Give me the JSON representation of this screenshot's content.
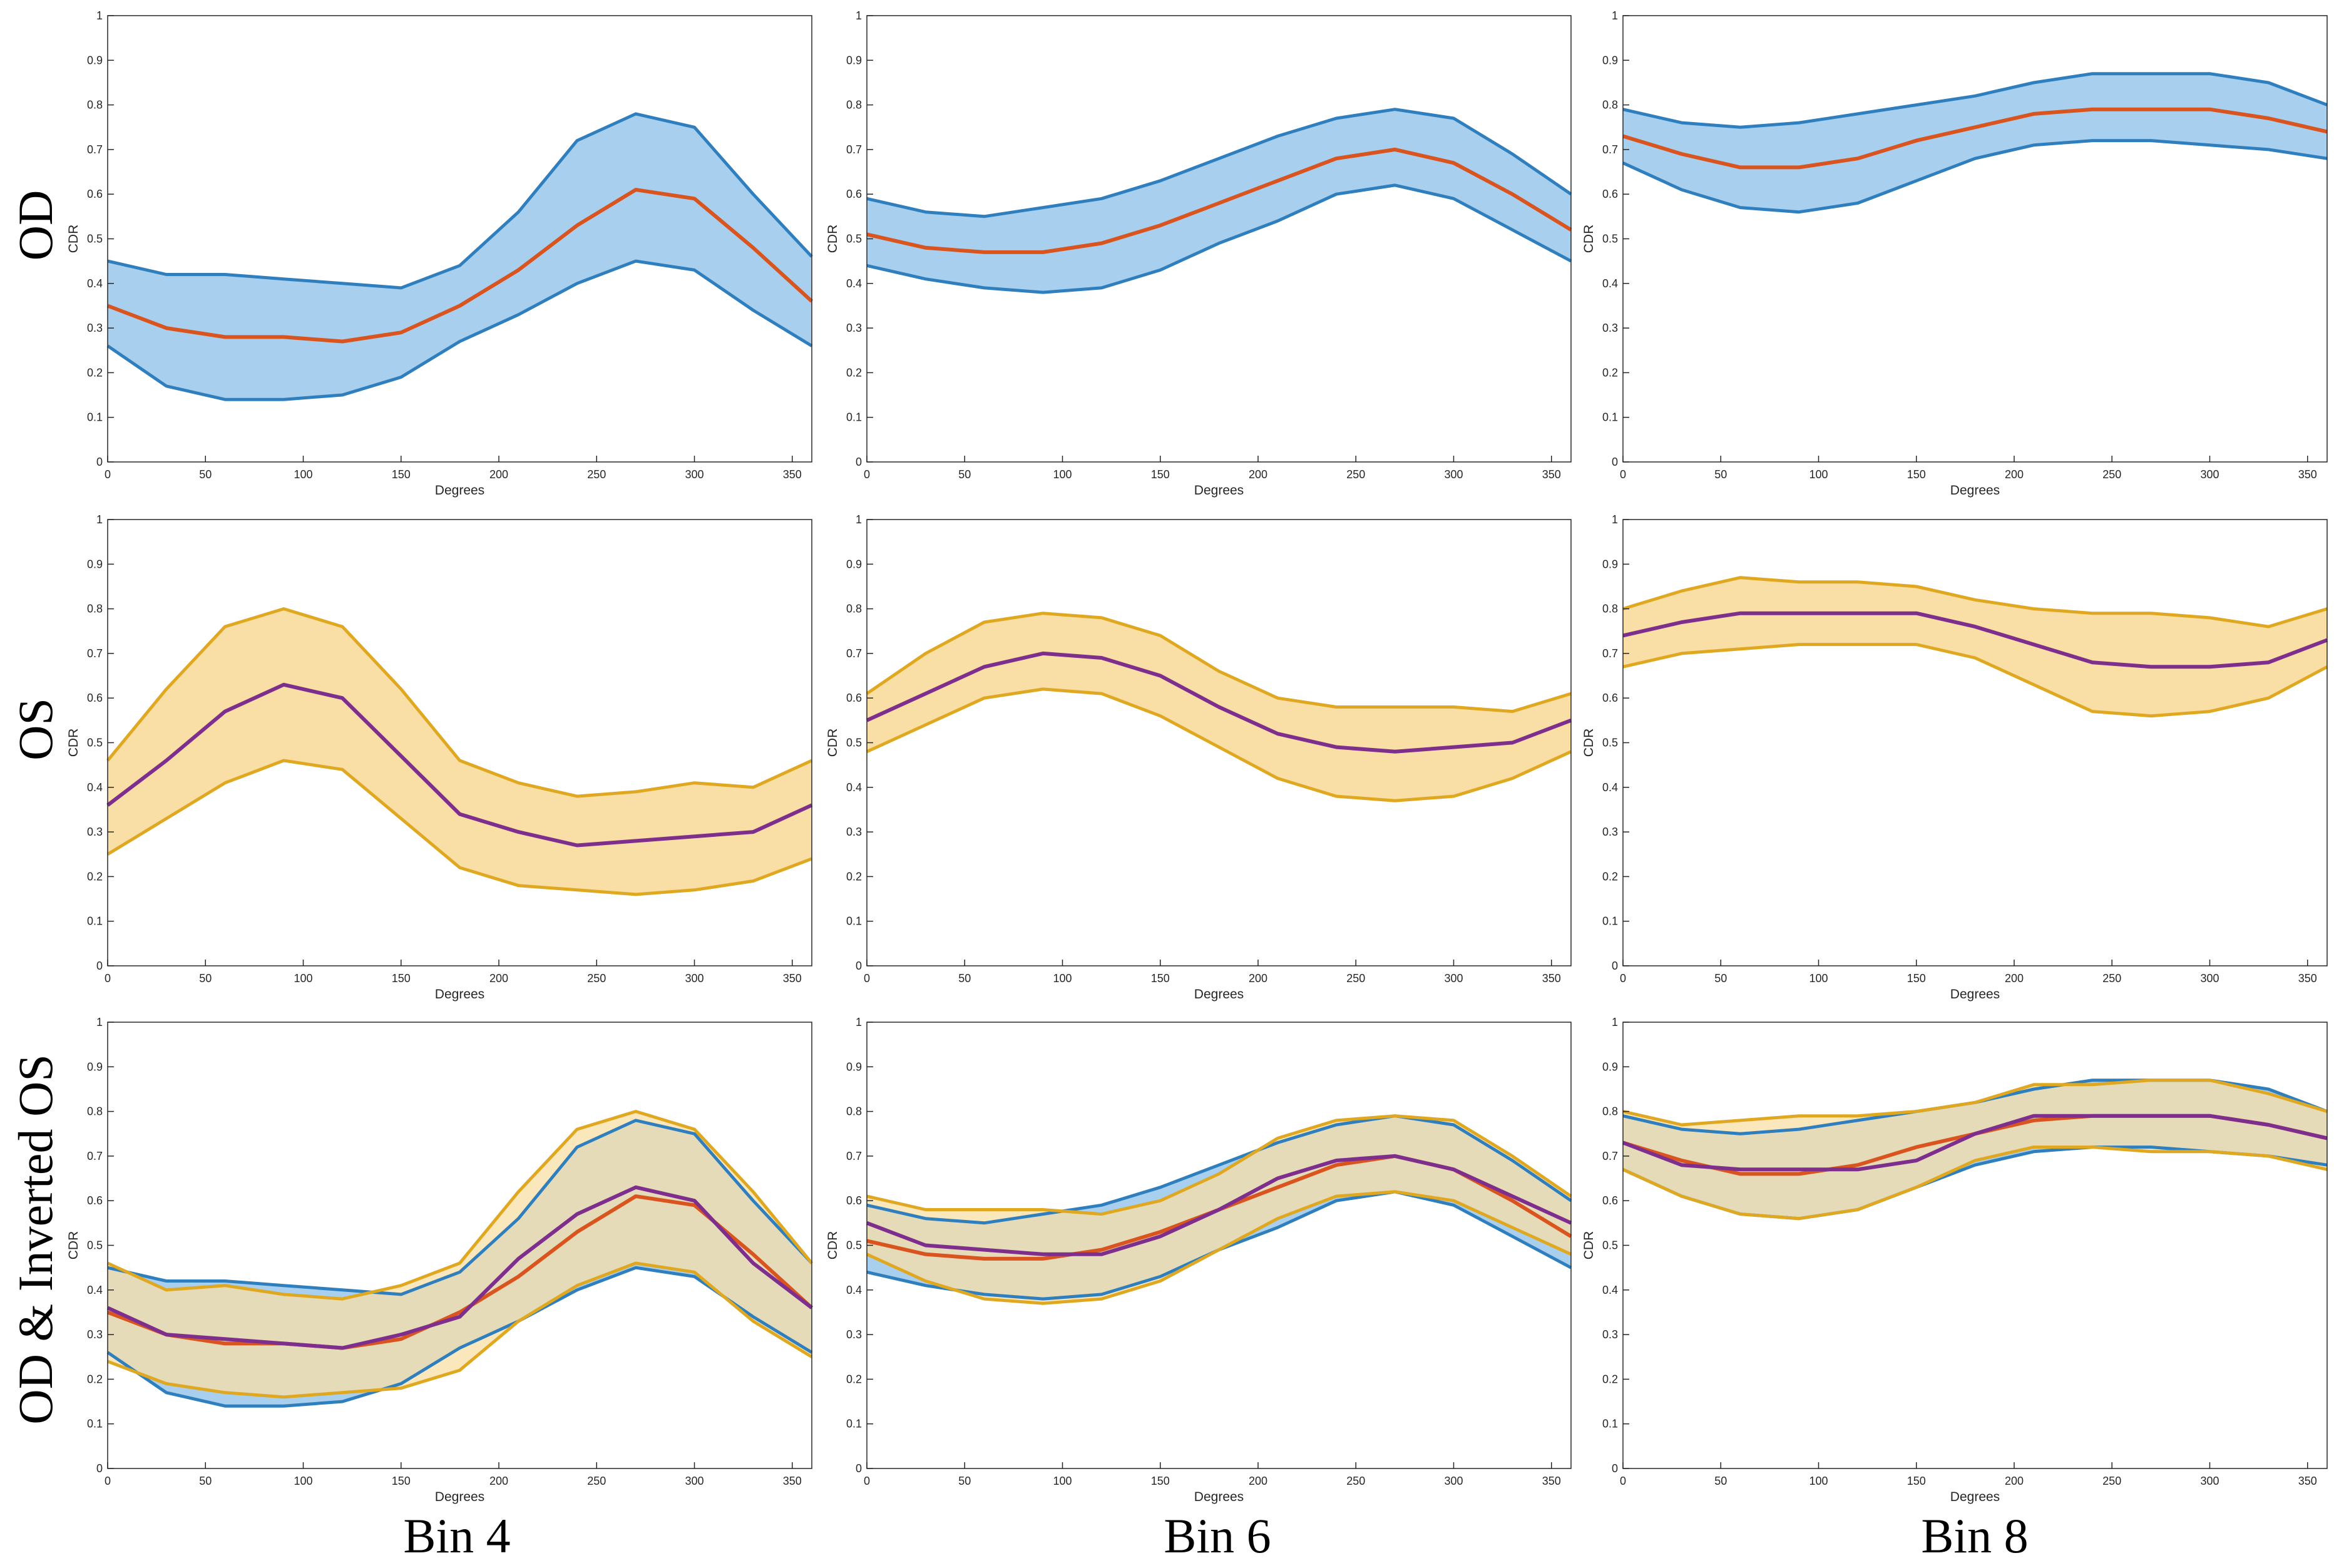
{
  "figure": {
    "row_labels": [
      "OD",
      "OS",
      "OD & Inverted OS"
    ],
    "col_labels": [
      "Bin 4",
      "Bin 6",
      "Bin 8"
    ],
    "colors": {
      "od_band": "#a8d0ee",
      "od_edge": "#2f7fbf",
      "od_mean": "#d9541e",
      "os_band": "#f9dfa6",
      "os_edge": "#e0a820",
      "os_mean": "#7e2f8e"
    }
  },
  "chart_data": [
    {
      "type": "line",
      "panel": "OD Bin 4",
      "title": "",
      "xlabel": "Degrees",
      "ylabel": "CDR",
      "xlim": [
        0,
        360
      ],
      "ylim": [
        0,
        1
      ],
      "grid": false,
      "x_ticks": [
        0,
        50,
        100,
        150,
        200,
        250,
        300,
        350
      ],
      "y_ticks": [
        0,
        0.1,
        0.2,
        0.3,
        0.4,
        0.5,
        0.6,
        0.7,
        0.8,
        0.9,
        1
      ],
      "x": [
        0,
        30,
        60,
        90,
        120,
        150,
        180,
        210,
        240,
        270,
        300,
        330,
        360
      ],
      "series": [
        {
          "name": "OD mean",
          "values": [
            0.35,
            0.3,
            0.28,
            0.28,
            0.27,
            0.29,
            0.35,
            0.43,
            0.53,
            0.61,
            0.59,
            0.48,
            0.36
          ]
        },
        {
          "name": "OD upper",
          "values": [
            0.45,
            0.42,
            0.42,
            0.41,
            0.4,
            0.39,
            0.44,
            0.56,
            0.72,
            0.78,
            0.75,
            0.6,
            0.46
          ]
        },
        {
          "name": "OD lower",
          "values": [
            0.26,
            0.17,
            0.14,
            0.14,
            0.15,
            0.19,
            0.27,
            0.33,
            0.4,
            0.45,
            0.43,
            0.34,
            0.26
          ]
        }
      ]
    },
    {
      "type": "line",
      "panel": "OD Bin 6",
      "title": "",
      "xlabel": "Degrees",
      "ylabel": "CDR",
      "xlim": [
        0,
        360
      ],
      "ylim": [
        0,
        1
      ],
      "grid": false,
      "x_ticks": [
        0,
        50,
        100,
        150,
        200,
        250,
        300,
        350
      ],
      "y_ticks": [
        0,
        0.1,
        0.2,
        0.3,
        0.4,
        0.5,
        0.6,
        0.7,
        0.8,
        0.9,
        1
      ],
      "x": [
        0,
        30,
        60,
        90,
        120,
        150,
        180,
        210,
        240,
        270,
        300,
        330,
        360
      ],
      "series": [
        {
          "name": "OD mean",
          "values": [
            0.51,
            0.48,
            0.47,
            0.47,
            0.49,
            0.53,
            0.58,
            0.63,
            0.68,
            0.7,
            0.67,
            0.6,
            0.52
          ]
        },
        {
          "name": "OD upper",
          "values": [
            0.59,
            0.56,
            0.55,
            0.57,
            0.59,
            0.63,
            0.68,
            0.73,
            0.77,
            0.79,
            0.77,
            0.69,
            0.6
          ]
        },
        {
          "name": "OD lower",
          "values": [
            0.44,
            0.41,
            0.39,
            0.38,
            0.39,
            0.43,
            0.49,
            0.54,
            0.6,
            0.62,
            0.59,
            0.52,
            0.45
          ]
        }
      ]
    },
    {
      "type": "line",
      "panel": "OD Bin 8",
      "title": "",
      "xlabel": "Degrees",
      "ylabel": "CDR",
      "xlim": [
        0,
        360
      ],
      "ylim": [
        0,
        1
      ],
      "grid": false,
      "x_ticks": [
        0,
        50,
        100,
        150,
        200,
        250,
        300,
        350
      ],
      "y_ticks": [
        0,
        0.1,
        0.2,
        0.3,
        0.4,
        0.5,
        0.6,
        0.7,
        0.8,
        0.9,
        1
      ],
      "x": [
        0,
        30,
        60,
        90,
        120,
        150,
        180,
        210,
        240,
        270,
        300,
        330,
        360
      ],
      "series": [
        {
          "name": "OD mean",
          "values": [
            0.73,
            0.69,
            0.66,
            0.66,
            0.68,
            0.72,
            0.75,
            0.78,
            0.79,
            0.79,
            0.79,
            0.77,
            0.74
          ]
        },
        {
          "name": "OD upper",
          "values": [
            0.79,
            0.76,
            0.75,
            0.76,
            0.78,
            0.8,
            0.82,
            0.85,
            0.87,
            0.87,
            0.87,
            0.85,
            0.8
          ]
        },
        {
          "name": "OD lower",
          "values": [
            0.67,
            0.61,
            0.57,
            0.56,
            0.58,
            0.63,
            0.68,
            0.71,
            0.72,
            0.72,
            0.71,
            0.7,
            0.68
          ]
        }
      ]
    },
    {
      "type": "line",
      "panel": "OS Bin 4",
      "title": "",
      "xlabel": "Degrees",
      "ylabel": "CDR",
      "xlim": [
        0,
        360
      ],
      "ylim": [
        0,
        1
      ],
      "grid": false,
      "x_ticks": [
        0,
        50,
        100,
        150,
        200,
        250,
        300,
        350
      ],
      "y_ticks": [
        0,
        0.1,
        0.2,
        0.3,
        0.4,
        0.5,
        0.6,
        0.7,
        0.8,
        0.9,
        1
      ],
      "x": [
        0,
        30,
        60,
        90,
        120,
        150,
        180,
        210,
        240,
        270,
        300,
        330,
        360
      ],
      "series": [
        {
          "name": "OS mean",
          "values": [
            0.36,
            0.46,
            0.57,
            0.63,
            0.6,
            0.47,
            0.34,
            0.3,
            0.27,
            0.28,
            0.29,
            0.3,
            0.36
          ]
        },
        {
          "name": "OS upper",
          "values": [
            0.46,
            0.62,
            0.76,
            0.8,
            0.76,
            0.62,
            0.46,
            0.41,
            0.38,
            0.39,
            0.41,
            0.4,
            0.46
          ]
        },
        {
          "name": "OS lower",
          "values": [
            0.25,
            0.33,
            0.41,
            0.46,
            0.44,
            0.33,
            0.22,
            0.18,
            0.17,
            0.16,
            0.17,
            0.19,
            0.24
          ]
        }
      ]
    },
    {
      "type": "line",
      "panel": "OS Bin 6",
      "title": "",
      "xlabel": "Degrees",
      "ylabel": "CDR",
      "xlim": [
        0,
        360
      ],
      "ylim": [
        0,
        1
      ],
      "grid": false,
      "x_ticks": [
        0,
        50,
        100,
        150,
        200,
        250,
        300,
        350
      ],
      "y_ticks": [
        0,
        0.1,
        0.2,
        0.3,
        0.4,
        0.5,
        0.6,
        0.7,
        0.8,
        0.9,
        1
      ],
      "x": [
        0,
        30,
        60,
        90,
        120,
        150,
        180,
        210,
        240,
        270,
        300,
        330,
        360
      ],
      "series": [
        {
          "name": "OS mean",
          "values": [
            0.55,
            0.61,
            0.67,
            0.7,
            0.69,
            0.65,
            0.58,
            0.52,
            0.49,
            0.48,
            0.49,
            0.5,
            0.55
          ]
        },
        {
          "name": "OS upper",
          "values": [
            0.61,
            0.7,
            0.77,
            0.79,
            0.78,
            0.74,
            0.66,
            0.6,
            0.58,
            0.58,
            0.58,
            0.57,
            0.61
          ]
        },
        {
          "name": "OS lower",
          "values": [
            0.48,
            0.54,
            0.6,
            0.62,
            0.61,
            0.56,
            0.49,
            0.42,
            0.38,
            0.37,
            0.38,
            0.42,
            0.48
          ]
        }
      ]
    },
    {
      "type": "line",
      "panel": "OS Bin 8",
      "title": "",
      "xlabel": "Degrees",
      "ylabel": "CDR",
      "xlim": [
        0,
        360
      ],
      "ylim": [
        0,
        1
      ],
      "grid": false,
      "x_ticks": [
        0,
        50,
        100,
        150,
        200,
        250,
        300,
        350
      ],
      "y_ticks": [
        0,
        0.1,
        0.2,
        0.3,
        0.4,
        0.5,
        0.6,
        0.7,
        0.8,
        0.9,
        1
      ],
      "x": [
        0,
        30,
        60,
        90,
        120,
        150,
        180,
        210,
        240,
        270,
        300,
        330,
        360
      ],
      "series": [
        {
          "name": "OS mean",
          "values": [
            0.74,
            0.77,
            0.79,
            0.79,
            0.79,
            0.79,
            0.76,
            0.72,
            0.68,
            0.67,
            0.67,
            0.68,
            0.73
          ]
        },
        {
          "name": "OS upper",
          "values": [
            0.8,
            0.84,
            0.87,
            0.86,
            0.86,
            0.85,
            0.82,
            0.8,
            0.79,
            0.79,
            0.78,
            0.76,
            0.8
          ]
        },
        {
          "name": "OS lower",
          "values": [
            0.67,
            0.7,
            0.71,
            0.72,
            0.72,
            0.72,
            0.69,
            0.63,
            0.57,
            0.56,
            0.57,
            0.6,
            0.67
          ]
        }
      ]
    },
    {
      "type": "line",
      "panel": "OD & Inverted OS Bin 4",
      "title": "",
      "xlabel": "Degrees",
      "ylabel": "CDR",
      "xlim": [
        0,
        360
      ],
      "ylim": [
        0,
        1
      ],
      "grid": false,
      "x_ticks": [
        0,
        50,
        100,
        150,
        200,
        250,
        300,
        350
      ],
      "y_ticks": [
        0,
        0.1,
        0.2,
        0.3,
        0.4,
        0.5,
        0.6,
        0.7,
        0.8,
        0.9,
        1
      ],
      "x": [
        0,
        30,
        60,
        90,
        120,
        150,
        180,
        210,
        240,
        270,
        300,
        330,
        360
      ],
      "series": [
        {
          "name": "OD mean",
          "values": [
            0.35,
            0.3,
            0.28,
            0.28,
            0.27,
            0.29,
            0.35,
            0.43,
            0.53,
            0.61,
            0.59,
            0.48,
            0.36
          ]
        },
        {
          "name": "OD upper",
          "values": [
            0.45,
            0.42,
            0.42,
            0.41,
            0.4,
            0.39,
            0.44,
            0.56,
            0.72,
            0.78,
            0.75,
            0.6,
            0.46
          ]
        },
        {
          "name": "OD lower",
          "values": [
            0.26,
            0.17,
            0.14,
            0.14,
            0.15,
            0.19,
            0.27,
            0.33,
            0.4,
            0.45,
            0.43,
            0.34,
            0.26
          ]
        },
        {
          "name": "Inverted OS mean",
          "values": [
            0.36,
            0.3,
            0.29,
            0.28,
            0.27,
            0.3,
            0.34,
            0.47,
            0.57,
            0.63,
            0.6,
            0.46,
            0.36
          ]
        },
        {
          "name": "Inverted OS upper",
          "values": [
            0.46,
            0.4,
            0.41,
            0.39,
            0.38,
            0.41,
            0.46,
            0.62,
            0.76,
            0.8,
            0.76,
            0.62,
            0.46
          ]
        },
        {
          "name": "Inverted OS lower",
          "values": [
            0.24,
            0.19,
            0.17,
            0.16,
            0.17,
            0.18,
            0.22,
            0.33,
            0.41,
            0.46,
            0.44,
            0.33,
            0.25
          ]
        }
      ]
    },
    {
      "type": "line",
      "panel": "OD & Inverted OS Bin 6",
      "title": "",
      "xlabel": "Degrees",
      "ylabel": "CDR",
      "xlim": [
        0,
        360
      ],
      "ylim": [
        0,
        1
      ],
      "grid": false,
      "x_ticks": [
        0,
        50,
        100,
        150,
        200,
        250,
        300,
        350
      ],
      "y_ticks": [
        0,
        0.1,
        0.2,
        0.3,
        0.4,
        0.5,
        0.6,
        0.7,
        0.8,
        0.9,
        1
      ],
      "x": [
        0,
        30,
        60,
        90,
        120,
        150,
        180,
        210,
        240,
        270,
        300,
        330,
        360
      ],
      "series": [
        {
          "name": "OD mean",
          "values": [
            0.51,
            0.48,
            0.47,
            0.47,
            0.49,
            0.53,
            0.58,
            0.63,
            0.68,
            0.7,
            0.67,
            0.6,
            0.52
          ]
        },
        {
          "name": "OD upper",
          "values": [
            0.59,
            0.56,
            0.55,
            0.57,
            0.59,
            0.63,
            0.68,
            0.73,
            0.77,
            0.79,
            0.77,
            0.69,
            0.6
          ]
        },
        {
          "name": "OD lower",
          "values": [
            0.44,
            0.41,
            0.39,
            0.38,
            0.39,
            0.43,
            0.49,
            0.54,
            0.6,
            0.62,
            0.59,
            0.52,
            0.45
          ]
        },
        {
          "name": "Inverted OS mean",
          "values": [
            0.55,
            0.5,
            0.49,
            0.48,
            0.48,
            0.52,
            0.58,
            0.65,
            0.69,
            0.7,
            0.67,
            0.61,
            0.55
          ]
        },
        {
          "name": "Inverted OS upper",
          "values": [
            0.61,
            0.58,
            0.58,
            0.58,
            0.57,
            0.6,
            0.66,
            0.74,
            0.78,
            0.79,
            0.78,
            0.7,
            0.61
          ]
        },
        {
          "name": "Inverted OS lower",
          "values": [
            0.48,
            0.42,
            0.38,
            0.37,
            0.38,
            0.42,
            0.49,
            0.56,
            0.61,
            0.62,
            0.6,
            0.54,
            0.48
          ]
        }
      ]
    },
    {
      "type": "line",
      "panel": "OD & Inverted OS Bin 8",
      "title": "",
      "xlabel": "Degrees",
      "ylabel": "CDR",
      "xlim": [
        0,
        360
      ],
      "ylim": [
        0,
        1
      ],
      "grid": false,
      "x_ticks": [
        0,
        50,
        100,
        150,
        200,
        250,
        300,
        350
      ],
      "y_ticks": [
        0,
        0.1,
        0.2,
        0.3,
        0.4,
        0.5,
        0.6,
        0.7,
        0.8,
        0.9,
        1
      ],
      "x": [
        0,
        30,
        60,
        90,
        120,
        150,
        180,
        210,
        240,
        270,
        300,
        330,
        360
      ],
      "series": [
        {
          "name": "OD mean",
          "values": [
            0.73,
            0.69,
            0.66,
            0.66,
            0.68,
            0.72,
            0.75,
            0.78,
            0.79,
            0.79,
            0.79,
            0.77,
            0.74
          ]
        },
        {
          "name": "OD upper",
          "values": [
            0.79,
            0.76,
            0.75,
            0.76,
            0.78,
            0.8,
            0.82,
            0.85,
            0.87,
            0.87,
            0.87,
            0.85,
            0.8
          ]
        },
        {
          "name": "OD lower",
          "values": [
            0.67,
            0.61,
            0.57,
            0.56,
            0.58,
            0.63,
            0.68,
            0.71,
            0.72,
            0.72,
            0.71,
            0.7,
            0.68
          ]
        },
        {
          "name": "Inverted OS mean",
          "values": [
            0.73,
            0.68,
            0.67,
            0.67,
            0.67,
            0.69,
            0.75,
            0.79,
            0.79,
            0.79,
            0.79,
            0.77,
            0.74
          ]
        },
        {
          "name": "Inverted OS upper",
          "values": [
            0.8,
            0.77,
            0.78,
            0.79,
            0.79,
            0.8,
            0.82,
            0.86,
            0.86,
            0.87,
            0.87,
            0.84,
            0.8
          ]
        },
        {
          "name": "Inverted OS lower",
          "values": [
            0.67,
            0.61,
            0.57,
            0.56,
            0.58,
            0.63,
            0.69,
            0.72,
            0.72,
            0.71,
            0.71,
            0.7,
            0.67
          ]
        }
      ]
    }
  ]
}
